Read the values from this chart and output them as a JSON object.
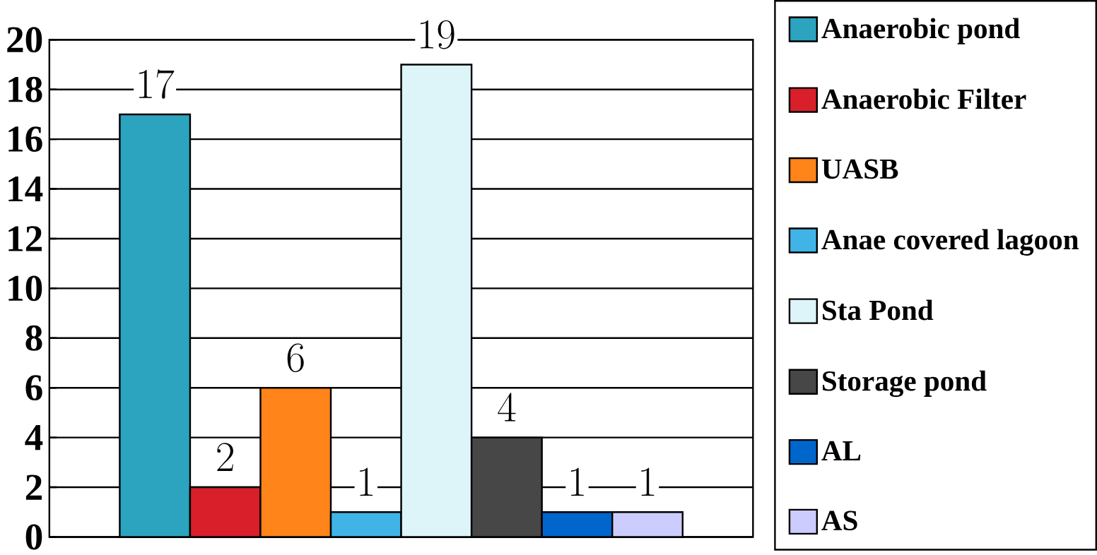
{
  "chart_data": {
    "type": "bar",
    "categories": [
      null
    ],
    "series": [
      {
        "name": "Anaerobic pond",
        "color": "#2ca3bf",
        "values": [
          17
        ]
      },
      {
        "name": "Anaerobic Filter",
        "color": "#d91f2a",
        "values": [
          2
        ]
      },
      {
        "name": "UASB",
        "color": "#ff8419",
        "values": [
          6
        ]
      },
      {
        "name": "Anae covered lagoon",
        "color": "#40b4e6",
        "values": [
          1
        ]
      },
      {
        "name": "Sta Pond",
        "color": "#ddf5f8",
        "values": [
          19
        ]
      },
      {
        "name": "Storage pond",
        "color": "#474747",
        "values": [
          4
        ]
      },
      {
        "name": "AL",
        "color": "#0066cc",
        "values": [
          1
        ]
      },
      {
        "name": "AS",
        "color": "#ccccff",
        "values": [
          1
        ]
      }
    ],
    "ylim": [
      0,
      20
    ],
    "yticks": [
      0,
      2,
      4,
      6,
      8,
      10,
      12,
      14,
      16,
      18,
      20
    ],
    "grid": "y",
    "legend": "right",
    "data_labels": true
  }
}
